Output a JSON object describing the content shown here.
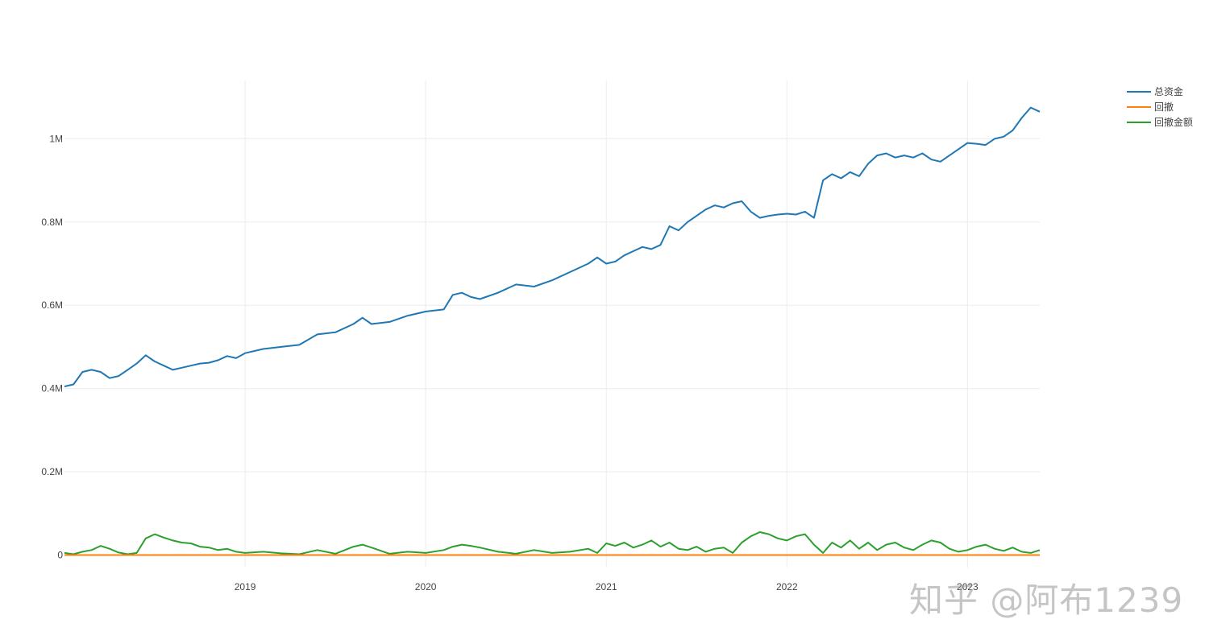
{
  "chart_data": {
    "type": "line",
    "title": "",
    "xlabel": "",
    "ylabel": "",
    "x_range": [
      2018.0,
      2023.4
    ],
    "ylim": [
      -30000,
      1140000
    ],
    "grid": true,
    "legend_position": "top-right",
    "y_ticks": [
      {
        "value": 0,
        "label": "0"
      },
      {
        "value": 200000,
        "label": "0.2M"
      },
      {
        "value": 400000,
        "label": "0.4M"
      },
      {
        "value": 600000,
        "label": "0.6M"
      },
      {
        "value": 800000,
        "label": "0.8M"
      },
      {
        "value": 1000000,
        "label": "1M"
      }
    ],
    "x_ticks": [
      {
        "value": 2019,
        "label": "2019"
      },
      {
        "value": 2020,
        "label": "2020"
      },
      {
        "value": 2021,
        "label": "2021"
      },
      {
        "value": 2022,
        "label": "2022"
      },
      {
        "value": 2023,
        "label": "2023"
      }
    ],
    "series": [
      {
        "name": "总资金",
        "color": "#1f77b4",
        "x": [
          2018.0,
          2018.05,
          2018.1,
          2018.15,
          2018.2,
          2018.25,
          2018.3,
          2018.35,
          2018.4,
          2018.45,
          2018.5,
          2018.55,
          2018.6,
          2018.65,
          2018.7,
          2018.75,
          2018.8,
          2018.85,
          2018.9,
          2018.95,
          2019.0,
          2019.1,
          2019.2,
          2019.3,
          2019.4,
          2019.5,
          2019.6,
          2019.65,
          2019.7,
          2019.8,
          2019.9,
          2020.0,
          2020.1,
          2020.15,
          2020.2,
          2020.25,
          2020.3,
          2020.4,
          2020.5,
          2020.6,
          2020.7,
          2020.8,
          2020.9,
          2020.95,
          2021.0,
          2021.05,
          2021.1,
          2021.15,
          2021.2,
          2021.25,
          2021.3,
          2021.35,
          2021.4,
          2021.45,
          2021.5,
          2021.55,
          2021.6,
          2021.65,
          2021.7,
          2021.75,
          2021.8,
          2021.85,
          2021.9,
          2021.95,
          2022.0,
          2022.05,
          2022.1,
          2022.15,
          2022.2,
          2022.25,
          2022.3,
          2022.35,
          2022.4,
          2022.45,
          2022.5,
          2022.55,
          2022.6,
          2022.65,
          2022.7,
          2022.75,
          2022.8,
          2022.85,
          2022.9,
          2022.95,
          2023.0,
          2023.05,
          2023.1,
          2023.15,
          2023.2,
          2023.25,
          2023.3,
          2023.35,
          2023.4
        ],
        "values": [
          405000,
          410000,
          440000,
          445000,
          440000,
          425000,
          430000,
          445000,
          460000,
          480000,
          465000,
          455000,
          445000,
          450000,
          455000,
          460000,
          462000,
          468000,
          478000,
          473000,
          485000,
          495000,
          500000,
          505000,
          530000,
          535000,
          555000,
          570000,
          555000,
          560000,
          575000,
          585000,
          590000,
          625000,
          630000,
          620000,
          615000,
          630000,
          650000,
          645000,
          660000,
          680000,
          700000,
          715000,
          700000,
          705000,
          720000,
          730000,
          740000,
          735000,
          745000,
          790000,
          780000,
          800000,
          815000,
          830000,
          840000,
          835000,
          845000,
          850000,
          825000,
          810000,
          815000,
          818000,
          820000,
          818000,
          825000,
          810000,
          900000,
          915000,
          905000,
          920000,
          910000,
          940000,
          960000,
          965000,
          955000,
          960000,
          955000,
          965000,
          950000,
          945000,
          960000,
          975000,
          990000,
          988000,
          985000,
          1000000,
          1005000,
          1020000,
          1050000,
          1075000,
          1065000
        ]
      },
      {
        "name": "回撤",
        "color": "#ff7f0e",
        "x": [
          2018.0,
          2023.4
        ],
        "values": [
          0,
          0
        ]
      },
      {
        "name": "回撤金额",
        "color": "#2ca02c",
        "x": [
          2018.0,
          2018.05,
          2018.1,
          2018.15,
          2018.2,
          2018.25,
          2018.3,
          2018.35,
          2018.4,
          2018.45,
          2018.5,
          2018.55,
          2018.6,
          2018.65,
          2018.7,
          2018.75,
          2018.8,
          2018.85,
          2018.9,
          2018.95,
          2019.0,
          2019.1,
          2019.2,
          2019.3,
          2019.4,
          2019.5,
          2019.6,
          2019.65,
          2019.7,
          2019.8,
          2019.9,
          2020.0,
          2020.1,
          2020.15,
          2020.2,
          2020.25,
          2020.3,
          2020.4,
          2020.5,
          2020.6,
          2020.7,
          2020.8,
          2020.9,
          2020.95,
          2021.0,
          2021.05,
          2021.1,
          2021.15,
          2021.2,
          2021.25,
          2021.3,
          2021.35,
          2021.4,
          2021.45,
          2021.5,
          2021.55,
          2021.6,
          2021.65,
          2021.7,
          2021.75,
          2021.8,
          2021.85,
          2021.9,
          2021.95,
          2022.0,
          2022.05,
          2022.1,
          2022.15,
          2022.2,
          2022.25,
          2022.3,
          2022.35,
          2022.4,
          2022.45,
          2022.5,
          2022.55,
          2022.6,
          2022.65,
          2022.7,
          2022.75,
          2022.8,
          2022.85,
          2022.9,
          2022.95,
          2023.0,
          2023.05,
          2023.1,
          2023.15,
          2023.2,
          2023.25,
          2023.3,
          2023.35,
          2023.4
        ],
        "values": [
          5000,
          2000,
          8000,
          12000,
          22000,
          15000,
          6000,
          2000,
          5000,
          40000,
          50000,
          42000,
          35000,
          30000,
          28000,
          20000,
          18000,
          12000,
          15000,
          8000,
          5000,
          8000,
          4000,
          2000,
          12000,
          3000,
          20000,
          25000,
          18000,
          3000,
          8000,
          5000,
          12000,
          20000,
          25000,
          22000,
          18000,
          8000,
          3000,
          12000,
          5000,
          8000,
          15000,
          5000,
          28000,
          22000,
          30000,
          18000,
          25000,
          35000,
          20000,
          30000,
          15000,
          12000,
          20000,
          8000,
          15000,
          18000,
          5000,
          30000,
          45000,
          55000,
          50000,
          40000,
          35000,
          45000,
          50000,
          25000,
          5000,
          30000,
          18000,
          35000,
          15000,
          30000,
          12000,
          25000,
          30000,
          18000,
          12000,
          25000,
          35000,
          30000,
          15000,
          8000,
          12000,
          20000,
          25000,
          15000,
          10000,
          18000,
          8000,
          5000,
          12000
        ]
      }
    ]
  },
  "watermark": {
    "text": "知乎 @阿布1239"
  }
}
